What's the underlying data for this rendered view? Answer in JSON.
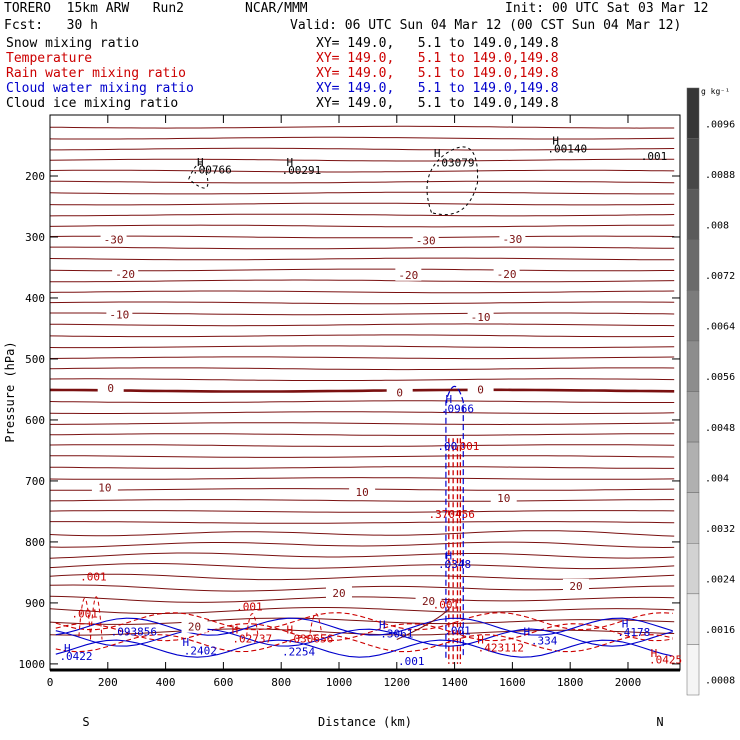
{
  "header": {
    "model": "TORERO  15km ARW   Run2",
    "org": "NCAR/MMM",
    "init": "Init: 00 UTC Sat 03 Mar 12",
    "fcst": "Fcst:   30 h",
    "valid": "Valid: 06 UTC Sun 04 Mar 12 (00 CST Sun 04 Mar 12)"
  },
  "fields": [
    {
      "name": "Snow mixing ratio",
      "xy": "XY= 149.0,   5.1 to 149.0,149.8",
      "color": "#000000"
    },
    {
      "name": "Temperature",
      "xy": "XY= 149.0,   5.1 to 149.0,149.8",
      "color": "#cc0000"
    },
    {
      "name": "Rain water mixing ratio",
      "xy": "XY= 149.0,   5.1 to 149.0,149.8",
      "color": "#cc0000"
    },
    {
      "name": "Cloud water mixing ratio",
      "xy": "XY= 149.0,   5.1 to 149.0,149.8",
      "color": "#0000cc"
    },
    {
      "name": "Cloud ice mixing ratio",
      "xy": "XY= 149.0,   5.1 to 149.0,149.8",
      "color": "#000000"
    }
  ],
  "chart_data": {
    "type": "contour-cross-section",
    "xlabel": "Distance (km)",
    "ylabel": "Pressure (hPa)",
    "xlim": [
      0,
      2180
    ],
    "ylim": [
      1010,
      100
    ],
    "x_ticks": [
      0,
      200,
      400,
      600,
      800,
      1000,
      1200,
      1400,
      1600,
      1800,
      2000
    ],
    "y_ticks": [
      200,
      300,
      400,
      500,
      600,
      700,
      800,
      900,
      1000
    ],
    "direction_left": "S",
    "direction_right": "N",
    "colorbar": {
      "unit": "g kg⁻¹",
      "labels": [
        ".0096",
        ".0088",
        ".008",
        ".0072",
        ".0064",
        ".0056",
        ".0048",
        ".004",
        ".0032",
        ".0024",
        ".0016",
        ".0008"
      ]
    },
    "temperature_contour_labels": [
      {
        "value": "-30",
        "x": 220,
        "p": 304
      },
      {
        "value": "-30",
        "x": 1300,
        "p": 306
      },
      {
        "value": "-30",
        "x": 1600,
        "p": 303
      },
      {
        "value": "-20",
        "x": 260,
        "p": 361
      },
      {
        "value": "-20",
        "x": 1240,
        "p": 362
      },
      {
        "value": "-20",
        "x": 1580,
        "p": 361
      },
      {
        "value": "-10",
        "x": 240,
        "p": 427
      },
      {
        "value": "-10",
        "x": 1490,
        "p": 431
      },
      {
        "value": "0",
        "x": 210,
        "p": 548
      },
      {
        "value": "0",
        "x": 1210,
        "p": 555
      },
      {
        "value": "0",
        "x": 1490,
        "p": 550
      },
      {
        "value": "10",
        "x": 190,
        "p": 711
      },
      {
        "value": "10",
        "x": 1080,
        "p": 718
      },
      {
        "value": "10",
        "x": 1570,
        "p": 728
      },
      {
        "value": "20",
        "x": 1000,
        "p": 884
      },
      {
        "value": "20",
        "x": 1310,
        "p": 897
      },
      {
        "value": "20",
        "x": 1820,
        "p": 872
      },
      {
        "value": "20",
        "x": 500,
        "p": 939
      }
    ],
    "maxima_labels": [
      {
        "text": ".00766",
        "x": 560,
        "p": 189,
        "color": "#000000"
      },
      {
        "text": ".00291",
        "x": 870,
        "p": 190,
        "color": "#000000"
      },
      {
        "text": ".03079",
        "x": 1400,
        "p": 178,
        "color": "#000000"
      },
      {
        "text": ".00140",
        "x": 1790,
        "p": 155,
        "color": "#000000"
      },
      {
        "text": ".001",
        "x": 2090,
        "p": 167,
        "color": "#000000"
      },
      {
        "text": ".0966",
        "x": 1410,
        "p": 581,
        "color": "#0000cc"
      },
      {
        "text": ".00",
        "x": 1375,
        "p": 643,
        "color": "#0000cc"
      },
      {
        "text": ".001",
        "x": 1440,
        "p": 643,
        "color": "#cc0000"
      },
      {
        "text": ".370456",
        "x": 1390,
        "p": 754,
        "color": "#cc0000"
      },
      {
        "text": ".0348",
        "x": 1400,
        "p": 836,
        "color": "#0000cc"
      },
      {
        "text": ".001",
        "x": 150,
        "p": 857,
        "color": "#cc0000"
      },
      {
        "text": ".001",
        "x": 120,
        "p": 917,
        "color": "#cc0000"
      },
      {
        "text": ".001",
        "x": 690,
        "p": 906,
        "color": "#cc0000"
      },
      {
        "text": ".001",
        "x": 1370,
        "p": 903,
        "color": "#cc0000"
      },
      {
        "text": ".001",
        "x": 1410,
        "p": 945,
        "color": "#0000cc"
      },
      {
        "text": ".001",
        "x": 1250,
        "p": 995,
        "color": "#0000cc"
      },
      {
        "text": ".0422",
        "x": 90,
        "p": 987,
        "color": "#0000cc"
      },
      {
        "text": ".093856",
        "x": 290,
        "p": 947,
        "color": "#0000cc"
      },
      {
        "text": ".2402",
        "x": 520,
        "p": 978,
        "color": "#0000cc"
      },
      {
        "text": ".02737",
        "x": 700,
        "p": 958,
        "color": "#cc0000"
      },
      {
        "text": ".030656",
        "x": 900,
        "p": 958,
        "color": "#cc0000"
      },
      {
        "text": ".2254",
        "x": 860,
        "p": 980,
        "color": "#0000cc"
      },
      {
        "text": ".3061",
        "x": 1200,
        "p": 950,
        "color": "#0000cc"
      },
      {
        "text": ".423112",
        "x": 1560,
        "p": 973,
        "color": "#cc0000"
      },
      {
        "text": ".334",
        "x": 1710,
        "p": 962,
        "color": "#0000cc"
      },
      {
        "text": ".4178",
        "x": 2020,
        "p": 948,
        "color": "#0000cc"
      },
      {
        "text": ".0425",
        "x": 2130,
        "p": 993,
        "color": "#cc0000"
      }
    ],
    "h_markers": [
      {
        "x": 520,
        "p": 177,
        "color": "#000000"
      },
      {
        "x": 830,
        "p": 177,
        "color": "#000000"
      },
      {
        "x": 1340,
        "p": 162,
        "color": "#000000"
      },
      {
        "x": 1750,
        "p": 142,
        "color": "#000000"
      },
      {
        "x": 1380,
        "p": 566,
        "color": "#0000cc"
      },
      {
        "x": 1380,
        "p": 822,
        "color": "#0000cc"
      },
      {
        "x": 60,
        "p": 974,
        "color": "#0000cc"
      },
      {
        "x": 470,
        "p": 964,
        "color": "#0000cc"
      },
      {
        "x": 640,
        "p": 944,
        "color": "#cc0000"
      },
      {
        "x": 830,
        "p": 944,
        "color": "#cc0000"
      },
      {
        "x": 1150,
        "p": 935,
        "color": "#0000cc"
      },
      {
        "x": 1490,
        "p": 960,
        "color": "#cc0000"
      },
      {
        "x": 1650,
        "p": 947,
        "color": "#0000cc"
      },
      {
        "x": 1990,
        "p": 934,
        "color": "#0000cc"
      },
      {
        "x": 2090,
        "p": 982,
        "color": "#cc0000"
      }
    ]
  }
}
